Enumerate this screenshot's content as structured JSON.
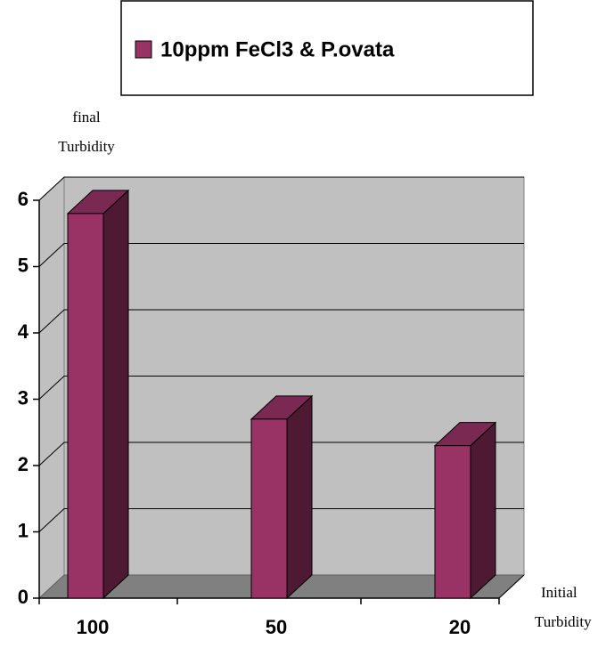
{
  "chart_data": {
    "type": "bar3d",
    "legend_position": "top",
    "y_label": [
      "final",
      "Turbidity"
    ],
    "x_label": [
      "Initial",
      "Turbidity"
    ],
    "categories": [
      "100",
      "50",
      "20"
    ],
    "series": [
      {
        "name": "10ppm FeCl3 & P.ovata",
        "color": "#993366",
        "values": [
          5.8,
          2.7,
          2.3
        ]
      }
    ],
    "ylim": [
      0,
      6
    ],
    "yticks": [
      0,
      1,
      2,
      3,
      4,
      5,
      6
    ],
    "grid": true
  }
}
